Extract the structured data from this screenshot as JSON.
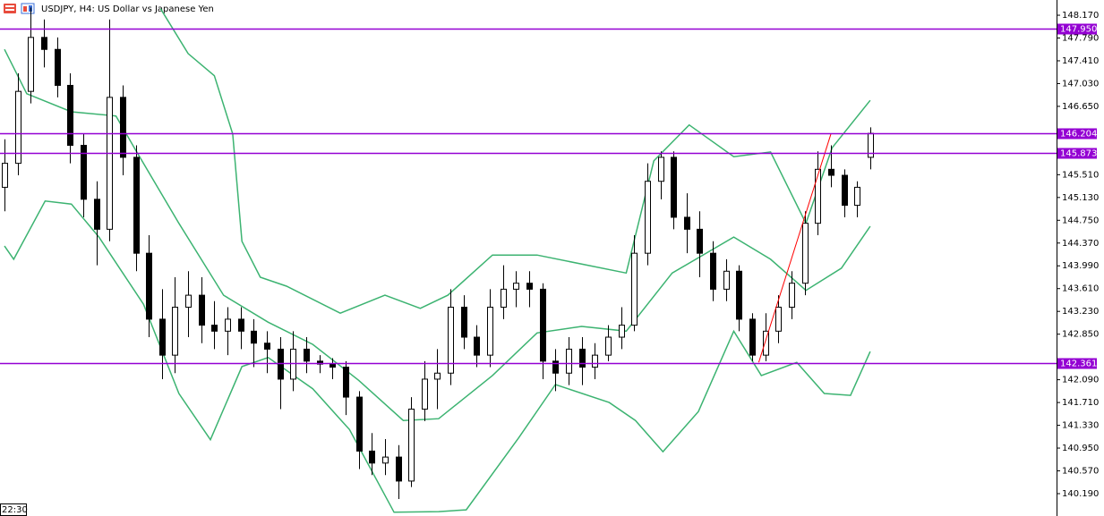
{
  "chart_data": {
    "type": "candlestick",
    "title": "USDJPY, H4:  US Dollar vs Japanese Yen",
    "time_label": "22:30",
    "ylim": [
      139.817,
      148.424
    ],
    "yticks": [
      {
        "value": 148.17,
        "label": "148.170"
      },
      {
        "value": 147.79,
        "label": "147.790"
      },
      {
        "value": 147.41,
        "label": "147.410"
      },
      {
        "value": 147.03,
        "label": "147.030"
      },
      {
        "value": 146.65,
        "label": "146.650"
      },
      {
        "value": 145.51,
        "label": "145.510"
      },
      {
        "value": 145.13,
        "label": "145.130"
      },
      {
        "value": 144.75,
        "label": "144.750"
      },
      {
        "value": 144.37,
        "label": "144.370"
      },
      {
        "value": 143.99,
        "label": "143.990"
      },
      {
        "value": 143.61,
        "label": "143.610"
      },
      {
        "value": 143.23,
        "label": "143.230"
      },
      {
        "value": 142.85,
        "label": "142.850"
      },
      {
        "value": 142.09,
        "label": "142.090"
      },
      {
        "value": 141.71,
        "label": "141.710"
      },
      {
        "value": 141.33,
        "label": "141.330"
      },
      {
        "value": 140.95,
        "label": "140.950"
      },
      {
        "value": 140.57,
        "label": "140.570"
      },
      {
        "value": 140.19,
        "label": "140.190"
      }
    ],
    "up_color": "#ffffff",
    "down_color": "#000000",
    "ohlc": [
      [
        145.3,
        146.1,
        144.9,
        145.7
      ],
      [
        145.7,
        147.2,
        145.5,
        146.9
      ],
      [
        146.9,
        148.3,
        146.7,
        147.8
      ],
      [
        147.8,
        148.1,
        147.3,
        147.6
      ],
      [
        147.6,
        147.8,
        146.8,
        147.0
      ],
      [
        147.0,
        147.2,
        145.7,
        146.0
      ],
      [
        146.0,
        146.2,
        144.8,
        145.1
      ],
      [
        145.1,
        145.4,
        144.0,
        144.6
      ],
      [
        144.6,
        148.1,
        144.4,
        146.8
      ],
      [
        146.8,
        147.0,
        145.5,
        145.8
      ],
      [
        145.8,
        146.0,
        143.9,
        144.2
      ],
      [
        144.2,
        144.5,
        142.8,
        143.1
      ],
      [
        143.1,
        143.6,
        142.1,
        142.5
      ],
      [
        142.5,
        143.8,
        142.2,
        143.3
      ],
      [
        143.3,
        143.9,
        142.8,
        143.5
      ],
      [
        143.5,
        143.8,
        142.7,
        143.0
      ],
      [
        143.0,
        143.4,
        142.6,
        142.9
      ],
      [
        142.9,
        143.3,
        142.5,
        143.1
      ],
      [
        143.1,
        143.3,
        142.6,
        142.9
      ],
      [
        142.9,
        143.1,
        142.3,
        142.7
      ],
      [
        142.7,
        142.9,
        142.2,
        142.6
      ],
      [
        142.6,
        142.8,
        141.6,
        142.1
      ],
      [
        142.1,
        142.9,
        141.9,
        142.6
      ],
      [
        142.6,
        142.8,
        142.2,
        142.4
      ],
      [
        142.4,
        142.5,
        142.2,
        142.35
      ],
      [
        142.35,
        142.45,
        142.1,
        142.3
      ],
      [
        142.3,
        142.4,
        141.5,
        141.8
      ],
      [
        141.8,
        141.9,
        140.6,
        140.9
      ],
      [
        140.9,
        141.2,
        140.5,
        140.7
      ],
      [
        140.7,
        141.1,
        140.5,
        140.8
      ],
      [
        140.8,
        141.0,
        140.1,
        140.4
      ],
      [
        140.4,
        141.8,
        140.3,
        141.6
      ],
      [
        141.6,
        142.4,
        141.4,
        142.1
      ],
      [
        142.1,
        142.6,
        141.6,
        142.2
      ],
      [
        142.2,
        143.6,
        142.0,
        143.3
      ],
      [
        143.3,
        143.5,
        142.6,
        142.8
      ],
      [
        142.8,
        143.0,
        142.3,
        142.5
      ],
      [
        142.5,
        143.6,
        142.3,
        143.3
      ],
      [
        143.3,
        144.0,
        143.1,
        143.6
      ],
      [
        143.6,
        143.9,
        143.3,
        143.7
      ],
      [
        143.7,
        143.9,
        143.3,
        143.6
      ],
      [
        143.6,
        143.7,
        142.1,
        142.4
      ],
      [
        142.4,
        142.6,
        141.9,
        142.2
      ],
      [
        142.2,
        142.8,
        142.0,
        142.6
      ],
      [
        142.6,
        142.8,
        142.0,
        142.3
      ],
      [
        142.3,
        142.7,
        142.1,
        142.5
      ],
      [
        142.5,
        143.0,
        142.4,
        142.8
      ],
      [
        142.8,
        143.3,
        142.6,
        143.0
      ],
      [
        143.0,
        144.5,
        142.9,
        144.2
      ],
      [
        144.2,
        145.7,
        144.0,
        145.4
      ],
      [
        145.4,
        145.9,
        145.1,
        145.8
      ],
      [
        145.8,
        145.9,
        144.6,
        144.8
      ],
      [
        144.8,
        145.2,
        144.2,
        144.6
      ],
      [
        144.6,
        144.9,
        143.8,
        144.2
      ],
      [
        144.2,
        144.4,
        143.4,
        143.6
      ],
      [
        143.6,
        144.1,
        143.4,
        143.9
      ],
      [
        143.9,
        144.0,
        142.9,
        143.1
      ],
      [
        143.1,
        143.2,
        142.4,
        142.5
      ],
      [
        142.5,
        143.2,
        142.4,
        142.9
      ],
      [
        142.9,
        143.5,
        142.7,
        143.3
      ],
      [
        143.3,
        143.9,
        143.1,
        143.7
      ],
      [
        143.7,
        144.9,
        143.5,
        144.7
      ],
      [
        144.7,
        145.9,
        144.5,
        145.6
      ],
      [
        145.6,
        146.0,
        145.3,
        145.5
      ],
      [
        145.5,
        145.6,
        144.8,
        145.0
      ],
      [
        145.0,
        145.4,
        144.8,
        145.3
      ],
      [
        145.8,
        146.3,
        145.6,
        146.2
      ]
    ],
    "bands": [
      {
        "color": "#3cb371",
        "x": [
          11.9,
          14.0,
          16.0,
          17.4,
          18.1,
          19.5,
          21.5,
          25.6,
          29.0,
          31.7,
          33.8,
          37.2,
          40.6,
          47.4,
          49.5,
          52.2,
          55.6,
          58.4,
          61.1,
          63.1,
          66.0
        ],
        "values": [
          148.28,
          147.53,
          147.16,
          146.19,
          144.4,
          143.8,
          143.65,
          143.2,
          143.5,
          143.28,
          143.5,
          144.17,
          144.17,
          143.87,
          145.74,
          146.34,
          145.81,
          145.89,
          144.7,
          145.96,
          146.75
        ]
      },
      {
        "color": "#3cb371",
        "x": [
          0,
          1.7,
          5.1,
          8.5,
          9.9,
          13.3,
          16.7,
          20.1,
          23.5,
          27.0,
          30.4,
          33.1,
          37.2,
          40.6,
          44.0,
          47.4,
          50.9,
          55.6,
          58.4,
          61.1,
          63.8,
          66.0
        ],
        "values": [
          147.6,
          146.86,
          146.56,
          146.49,
          145.96,
          144.7,
          143.5,
          143.05,
          142.68,
          142.08,
          141.41,
          141.44,
          142.16,
          142.87,
          142.98,
          142.9,
          143.87,
          144.47,
          144.1,
          143.58,
          143.95,
          144.65
        ]
      },
      {
        "color": "#3cb371",
        "x": [
          0,
          0.7,
          3.1,
          5.1,
          7.2,
          10.6,
          13.3,
          15.7,
          18.1,
          20.1,
          23.5,
          26.3,
          29.7,
          33.1,
          35.2,
          39.2,
          42.0,
          46.1,
          48.1,
          50.2,
          52.9,
          55.6,
          57.7,
          60.4,
          62.5,
          64.5,
          66.0
        ],
        "values": [
          144.32,
          144.1,
          145.07,
          145.02,
          144.47,
          143.35,
          141.86,
          141.09,
          142.31,
          142.46,
          141.94,
          141.26,
          139.88,
          139.89,
          139.92,
          141.12,
          142.01,
          141.71,
          141.41,
          140.89,
          141.56,
          142.9,
          142.16,
          142.38,
          141.86,
          141.83,
          142.56
        ]
      }
    ],
    "trendline": {
      "color": "#ff0000",
      "x": [
        57.5,
        63.0
      ],
      "values": [
        142.38,
        146.19
      ]
    },
    "level_color": "#9400d3",
    "levels": [
      {
        "value": 147.95,
        "label": "147.950"
      },
      146.204,
      145.873,
      {
        "value": 142.361,
        "label": "142.361"
      }
    ]
  }
}
